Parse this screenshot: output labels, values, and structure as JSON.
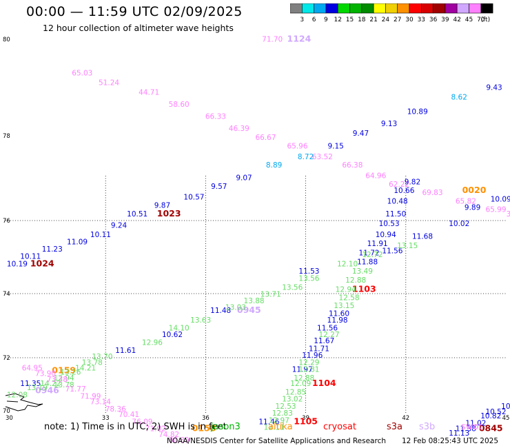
{
  "header": {
    "title": "00:00 — 11:59 UTC 02/09/2025",
    "subtitle": "12 hour collection of altimeter wave heights"
  },
  "legend": {
    "unit": "(ft)",
    "entries": [
      {
        "label": "3",
        "color": "#808080"
      },
      {
        "label": "6",
        "color": "#00e8e8"
      },
      {
        "label": "9",
        "color": "#00a8f0"
      },
      {
        "label": "12",
        "color": "#0000e0"
      },
      {
        "label": "15",
        "color": "#00d800"
      },
      {
        "label": "18",
        "color": "#00b400"
      },
      {
        "label": "21",
        "color": "#008c00"
      },
      {
        "label": "24",
        "color": "#ffff00"
      },
      {
        "label": "27",
        "color": "#f0d000"
      },
      {
        "label": "30",
        "color": "#ff9000"
      },
      {
        "label": "33",
        "color": "#ff0000"
      },
      {
        "label": "36",
        "color": "#d80000"
      },
      {
        "label": "39",
        "color": "#a00000"
      },
      {
        "label": "42",
        "color": "#a000a0"
      },
      {
        "label": "45",
        "color": "#d0a8ff"
      },
      {
        "label": "70",
        "color": "#ff80ff"
      },
      {
        "label": "",
        "color": "#000000"
      }
    ]
  },
  "map": {
    "lon_range": [
      30,
      45
    ],
    "lat_range": [
      70,
      80
    ],
    "lon_ticks": [
      "30",
      "33",
      "36",
      "39",
      "42",
      "45"
    ],
    "lat_ticks": [
      "80",
      "78",
      "76",
      "74",
      "72",
      "70"
    ]
  },
  "footer": {
    "note_label": "note:",
    "note_text": "1) Time is in UTC; 2) SWH is in feet",
    "satellites": [
      {
        "name": "jason3",
        "color": "#00b400"
      },
      {
        "name": "altika",
        "color": "#ff9000"
      },
      {
        "name": "cryosat",
        "color": "#ff0000"
      },
      {
        "name": "s3a",
        "color": "#a00000"
      },
      {
        "name": "s3b",
        "color": "#d0a8ff"
      },
      {
        "name": "swot",
        "color": "#ff80ff"
      }
    ],
    "credit": "NOAA/NESDIS Center for Satellite Applications and Research",
    "timestamp": "12 Feb 08:25:43 UTC 2025"
  },
  "chart_data": {
    "type": "scatter",
    "labels": [
      {
        "text": "71.70",
        "color": "#ff80ff",
        "lon": 38.0,
        "lat": 79.95
      },
      {
        "text": "1124",
        "color": "#d0a8ff",
        "lon": 38.8,
        "lat": 79.95,
        "time": true
      },
      {
        "text": "65.03",
        "color": "#ff80ff",
        "lon": 32.3,
        "lat": 79.25
      },
      {
        "text": "51.24",
        "color": "#ff80ff",
        "lon": 33.1,
        "lat": 79.05
      },
      {
        "text": "44.71",
        "color": "#ff80ff",
        "lon": 34.3,
        "lat": 78.85
      },
      {
        "text": "58.60",
        "color": "#ff80ff",
        "lon": 35.2,
        "lat": 78.6
      },
      {
        "text": "66.33",
        "color": "#ff80ff",
        "lon": 36.3,
        "lat": 78.35
      },
      {
        "text": "46.39",
        "color": "#ff80ff",
        "lon": 37.0,
        "lat": 78.1
      },
      {
        "text": "66.67",
        "color": "#ff80ff",
        "lon": 37.8,
        "lat": 77.9
      },
      {
        "text": "65.96",
        "color": "#ff80ff",
        "lon": 38.75,
        "lat": 77.7
      },
      {
        "text": "63.52",
        "color": "#ff80ff",
        "lon": 39.5,
        "lat": 77.45
      },
      {
        "text": "66.38",
        "color": "#ff80ff",
        "lon": 40.4,
        "lat": 77.25
      },
      {
        "text": "64.96",
        "color": "#ff80ff",
        "lon": 41.1,
        "lat": 77.0
      },
      {
        "text": "62.22",
        "color": "#ff80ff",
        "lon": 41.8,
        "lat": 76.8
      },
      {
        "text": "69.83",
        "color": "#ff80ff",
        "lon": 42.8,
        "lat": 76.6
      },
      {
        "text": "65.82",
        "color": "#ff80ff",
        "lon": 43.8,
        "lat": 76.4
      },
      {
        "text": "65.99",
        "color": "#ff80ff",
        "lon": 44.7,
        "lat": 76.2
      },
      {
        "text": "39",
        "color": "#ff80ff",
        "lon": 45.15,
        "lat": 76.1
      },
      {
        "text": "9.43",
        "color": "#0000e0",
        "lon": 44.65,
        "lat": 78.95
      },
      {
        "text": "8.62",
        "color": "#00a8f0",
        "lon": 43.6,
        "lat": 78.75
      },
      {
        "text": "10.89",
        "color": "#0000e0",
        "lon": 42.35,
        "lat": 78.45
      },
      {
        "text": "9.13",
        "color": "#0000e0",
        "lon": 41.5,
        "lat": 78.2
      },
      {
        "text": "9.47",
        "color": "#0000e0",
        "lon": 40.65,
        "lat": 78.0
      },
      {
        "text": "9.15",
        "color": "#0000e0",
        "lon": 39.9,
        "lat": 77.7
      },
      {
        "text": "8.72",
        "color": "#00a8f0",
        "lon": 39.0,
        "lat": 77.45
      },
      {
        "text": "8.89",
        "color": "#00a8f0",
        "lon": 38.05,
        "lat": 77.25
      },
      {
        "text": "9.07",
        "color": "#0000e0",
        "lon": 37.15,
        "lat": 76.95
      },
      {
        "text": "9.57",
        "color": "#0000e0",
        "lon": 36.4,
        "lat": 76.75
      },
      {
        "text": "10.57",
        "color": "#0000e0",
        "lon": 35.65,
        "lat": 76.5
      },
      {
        "text": "9.87",
        "color": "#0000e0",
        "lon": 34.7,
        "lat": 76.3
      },
      {
        "text": "1023",
        "color": "#a00000",
        "lon": 34.9,
        "lat": 76.1,
        "time": true
      },
      {
        "text": "10.51",
        "color": "#0000e0",
        "lon": 33.95,
        "lat": 76.1
      },
      {
        "text": "9.24",
        "color": "#0000e0",
        "lon": 33.4,
        "lat": 75.8
      },
      {
        "text": "10.11",
        "color": "#0000e0",
        "lon": 32.85,
        "lat": 75.55
      },
      {
        "text": "11.09",
        "color": "#0000e0",
        "lon": 32.15,
        "lat": 75.35
      },
      {
        "text": "11.23",
        "color": "#0000e0",
        "lon": 31.4,
        "lat": 75.15
      },
      {
        "text": "10.11",
        "color": "#0000e0",
        "lon": 30.75,
        "lat": 74.95
      },
      {
        "text": "10.19",
        "color": "#0000e0",
        "lon": 30.35,
        "lat": 74.75
      },
      {
        "text": "1024",
        "color": "#a00000",
        "lon": 31.1,
        "lat": 74.75,
        "time": true
      },
      {
        "text": "9.82",
        "color": "#0000e0",
        "lon": 42.2,
        "lat": 76.85
      },
      {
        "text": "10.66",
        "color": "#0000e0",
        "lon": 41.95,
        "lat": 76.65
      },
      {
        "text": "10.48",
        "color": "#0000e0",
        "lon": 41.75,
        "lat": 76.4
      },
      {
        "text": "11.50",
        "color": "#0000e0",
        "lon": 41.7,
        "lat": 76.1
      },
      {
        "text": "10.53",
        "color": "#0000e0",
        "lon": 41.5,
        "lat": 75.85
      },
      {
        "text": "10.94",
        "color": "#0000e0",
        "lon": 41.4,
        "lat": 75.55
      },
      {
        "text": "11.91",
        "color": "#0000e0",
        "lon": 41.15,
        "lat": 75.3
      },
      {
        "text": "11.56",
        "color": "#0000e0",
        "lon": 41.6,
        "lat": 75.1
      },
      {
        "text": "11.72",
        "color": "#0000e0",
        "lon": 40.9,
        "lat": 75.05
      },
      {
        "text": "11.88",
        "color": "#0000e0",
        "lon": 40.85,
        "lat": 74.8
      },
      {
        "text": "11.53",
        "color": "#0000e0",
        "lon": 39.1,
        "lat": 74.55
      },
      {
        "text": "11.60",
        "color": "#0000e0",
        "lon": 40.0,
        "lat": 73.3
      },
      {
        "text": "11.98",
        "color": "#0000e0",
        "lon": 39.95,
        "lat": 73.1
      },
      {
        "text": "11.56",
        "color": "#0000e0",
        "lon": 39.65,
        "lat": 72.85
      },
      {
        "text": "11.67",
        "color": "#0000e0",
        "lon": 39.55,
        "lat": 72.45
      },
      {
        "text": "11.71",
        "color": "#0000e0",
        "lon": 39.4,
        "lat": 72.2
      },
      {
        "text": "11.96",
        "color": "#0000e0",
        "lon": 39.2,
        "lat": 72.0
      },
      {
        "text": "11.97",
        "color": "#0000e0",
        "lon": 38.9,
        "lat": 71.5
      },
      {
        "text": "11.46",
        "color": "#0000e0",
        "lon": 37.9,
        "lat": 69.65
      },
      {
        "text": "11.48",
        "color": "#0000e0",
        "lon": 36.45,
        "lat": 73.4
      },
      {
        "text": "10.62",
        "color": "#0000e0",
        "lon": 35.0,
        "lat": 72.65
      },
      {
        "text": "11.61",
        "color": "#0000e0",
        "lon": 33.6,
        "lat": 72.15
      },
      {
        "text": "11.35",
        "color": "#0000e0",
        "lon": 30.75,
        "lat": 71.0
      },
      {
        "text": "11.68",
        "color": "#0000e0",
        "lon": 42.5,
        "lat": 75.5
      },
      {
        "text": "10.02",
        "color": "#0000e0",
        "lon": 43.6,
        "lat": 75.85
      },
      {
        "text": "9.89",
        "color": "#0000e0",
        "lon": 44.0,
        "lat": 76.25
      },
      {
        "text": "10.09",
        "color": "#0000e0",
        "lon": 44.85,
        "lat": 76.45
      },
      {
        "text": "0020",
        "color": "#ff9000",
        "lon": 44.05,
        "lat": 76.65,
        "time": true
      },
      {
        "text": "1103",
        "color": "#ff0000",
        "lon": 40.75,
        "lat": 74.05,
        "time": true
      },
      {
        "text": "0945",
        "color": "#d0a8ff",
        "lon": 37.3,
        "lat": 73.4,
        "time": true
      },
      {
        "text": "1104",
        "color": "#ff0000",
        "lon": 39.55,
        "lat": 71.0,
        "time": true
      },
      {
        "text": "1105",
        "color": "#ff0000",
        "lon": 39.0,
        "lat": 69.65,
        "time": true
      },
      {
        "text": "0845",
        "color": "#a00000",
        "lon": 44.55,
        "lat": 69.4,
        "time": true
      },
      {
        "text": "0158",
        "color": "#ff9000",
        "lon": 35.95,
        "lat": 69.4,
        "time": true
      },
      {
        "text": "0159",
        "color": "#ff9000",
        "lon": 31.75,
        "lat": 71.45,
        "time": true
      },
      {
        "text": "0946",
        "color": "#d0a8ff",
        "lon": 31.25,
        "lat": 70.75,
        "time": true
      },
      {
        "text": "13.15",
        "color": "#66dd66",
        "lon": 42.05,
        "lat": 75.25
      },
      {
        "text": "12.72",
        "color": "#66dd66",
        "lon": 41.0,
        "lat": 75.0
      },
      {
        "text": "12.10",
        "color": "#66dd66",
        "lon": 40.25,
        "lat": 74.75
      },
      {
        "text": "13.49",
        "color": "#66dd66",
        "lon": 40.7,
        "lat": 74.55
      },
      {
        "text": "12.88",
        "color": "#66dd66",
        "lon": 40.5,
        "lat": 74.3
      },
      {
        "text": "12.94",
        "color": "#66dd66",
        "lon": 40.2,
        "lat": 74.05
      },
      {
        "text": "12.58",
        "color": "#66dd66",
        "lon": 40.3,
        "lat": 73.8
      },
      {
        "text": "13.15",
        "color": "#66dd66",
        "lon": 40.15,
        "lat": 73.55
      },
      {
        "text": "13.56",
        "color": "#66dd66",
        "lon": 39.1,
        "lat": 74.35
      },
      {
        "text": "13.56",
        "color": "#66dd66",
        "lon": 38.6,
        "lat": 74.1
      },
      {
        "text": "13.71",
        "color": "#66dd66",
        "lon": 37.95,
        "lat": 73.9
      },
      {
        "text": "13.88",
        "color": "#66dd66",
        "lon": 37.45,
        "lat": 73.7
      },
      {
        "text": "13.03",
        "color": "#66dd66",
        "lon": 36.9,
        "lat": 73.5
      },
      {
        "text": "13.63",
        "color": "#66dd66",
        "lon": 35.85,
        "lat": 73.1
      },
      {
        "text": "14.10",
        "color": "#66dd66",
        "lon": 35.2,
        "lat": 72.85
      },
      {
        "text": "12.96",
        "color": "#66dd66",
        "lon": 34.4,
        "lat": 72.4
      },
      {
        "text": "13.70",
        "color": "#66dd66",
        "lon": 32.9,
        "lat": 71.95
      },
      {
        "text": "13.78",
        "color": "#66dd66",
        "lon": 32.6,
        "lat": 71.75
      },
      {
        "text": "14.21",
        "color": "#66dd66",
        "lon": 32.4,
        "lat": 71.55
      },
      {
        "text": "13.26",
        "color": "#66dd66",
        "lon": 31.95,
        "lat": 71.4
      },
      {
        "text": "12.94",
        "color": "#66dd66",
        "lon": 31.75,
        "lat": 71.2
      },
      {
        "text": "14.22",
        "color": "#66dd66",
        "lon": 31.35,
        "lat": 71.0
      },
      {
        "text": "13.78",
        "color": "#66dd66",
        "lon": 31.75,
        "lat": 70.95
      },
      {
        "text": "13.19",
        "color": "#66dd66",
        "lon": 30.95,
        "lat": 70.85
      },
      {
        "text": "12.08",
        "color": "#66dd66",
        "lon": 30.35,
        "lat": 70.6
      },
      {
        "text": "12.27",
        "color": "#66dd66",
        "lon": 39.7,
        "lat": 72.65
      },
      {
        "text": "12.29",
        "color": "#66dd66",
        "lon": 39.1,
        "lat": 71.75
      },
      {
        "text": "12.81",
        "color": "#66dd66",
        "lon": 39.1,
        "lat": 71.5
      },
      {
        "text": "12.88",
        "color": "#66dd66",
        "lon": 38.95,
        "lat": 71.2
      },
      {
        "text": "12.09",
        "color": "#66dd66",
        "lon": 38.85,
        "lat": 71.0
      },
      {
        "text": "12.85",
        "color": "#66dd66",
        "lon": 38.7,
        "lat": 70.7
      },
      {
        "text": "13.02",
        "color": "#66dd66",
        "lon": 38.6,
        "lat": 70.45
      },
      {
        "text": "12.53",
        "color": "#66dd66",
        "lon": 38.4,
        "lat": 70.2
      },
      {
        "text": "12.83",
        "color": "#66dd66",
        "lon": 38.3,
        "lat": 69.95
      },
      {
        "text": "12.97",
        "color": "#66dd66",
        "lon": 38.2,
        "lat": 69.7
      },
      {
        "text": "12.11",
        "color": "#66dd66",
        "lon": 38.05,
        "lat": 69.45
      },
      {
        "text": "64.95",
        "color": "#ff80ff",
        "lon": 30.8,
        "lat": 71.55
      },
      {
        "text": "73.90",
        "color": "#ff80ff",
        "lon": 31.2,
        "lat": 71.35
      },
      {
        "text": "73.38",
        "color": "#ff80ff",
        "lon": 31.55,
        "lat": 71.15
      },
      {
        "text": "71.77",
        "color": "#ff80ff",
        "lon": 32.1,
        "lat": 70.8
      },
      {
        "text": "71.99",
        "color": "#ff80ff",
        "lon": 32.55,
        "lat": 70.55
      },
      {
        "text": "73.14",
        "color": "#ff80ff",
        "lon": 32.85,
        "lat": 70.35
      },
      {
        "text": "78.36",
        "color": "#ff80ff",
        "lon": 33.3,
        "lat": 70.1
      },
      {
        "text": "70.41",
        "color": "#ff80ff",
        "lon": 33.7,
        "lat": 69.9
      },
      {
        "text": "76.09",
        "color": "#ff80ff",
        "lon": 34.1,
        "lat": 69.65
      },
      {
        "text": "71.02",
        "color": "#ff80ff",
        "lon": 34.5,
        "lat": 69.4
      },
      {
        "text": "74.82",
        "color": "#ff80ff",
        "lon": 34.9,
        "lat": 69.2
      },
      {
        "text": "80.89",
        "color": "#ff80ff",
        "lon": 35.2,
        "lat": 69.0
      },
      {
        "text": "10.3",
        "color": "#0000e0",
        "lon": 45.1,
        "lat": 70.2
      },
      {
        "text": "10.52",
        "color": "#0000e0",
        "lon": 44.7,
        "lat": 70.0
      },
      {
        "text": "10.82",
        "color": "#0000e0",
        "lon": 44.55,
        "lat": 69.85
      },
      {
        "text": "11.02",
        "color": "#0000e0",
        "lon": 44.1,
        "lat": 69.6
      },
      {
        "text": "11.38",
        "color": "#0000e0",
        "lon": 43.8,
        "lat": 69.4
      },
      {
        "text": "11.13",
        "color": "#0000e0",
        "lon": 43.6,
        "lat": 69.25
      }
    ]
  }
}
